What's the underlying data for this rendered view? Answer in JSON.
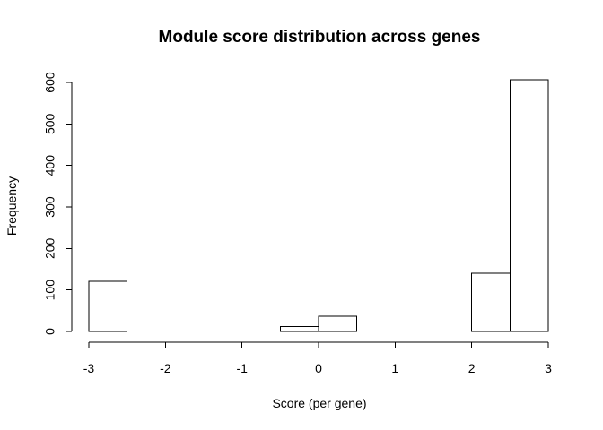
{
  "chart_data": {
    "type": "bar",
    "title": "Module score distribution across genes",
    "xlabel": "Score (per gene)",
    "ylabel": "Frequency",
    "bin_edges": [
      -3,
      -2.5,
      -2,
      -1.5,
      -1,
      -0.5,
      0,
      0.5,
      1,
      1.5,
      2,
      2.5,
      3
    ],
    "values": [
      121,
      0,
      0,
      0,
      0,
      12,
      37,
      0,
      0,
      0,
      140,
      606
    ],
    "xlim": [
      -3,
      3
    ],
    "ylim": [
      0,
      600
    ],
    "x_ticks": [
      -3,
      -2,
      -1,
      0,
      1,
      2,
      3
    ],
    "x_tick_labels": [
      "-3",
      "-2",
      "-1",
      "0",
      "1",
      "2",
      "3"
    ],
    "y_ticks": [
      0,
      100,
      200,
      300,
      400,
      500,
      600
    ],
    "y_tick_labels": [
      "0",
      "100",
      "200",
      "300",
      "400",
      "500",
      "600"
    ],
    "grid": false,
    "legend": "none"
  }
}
